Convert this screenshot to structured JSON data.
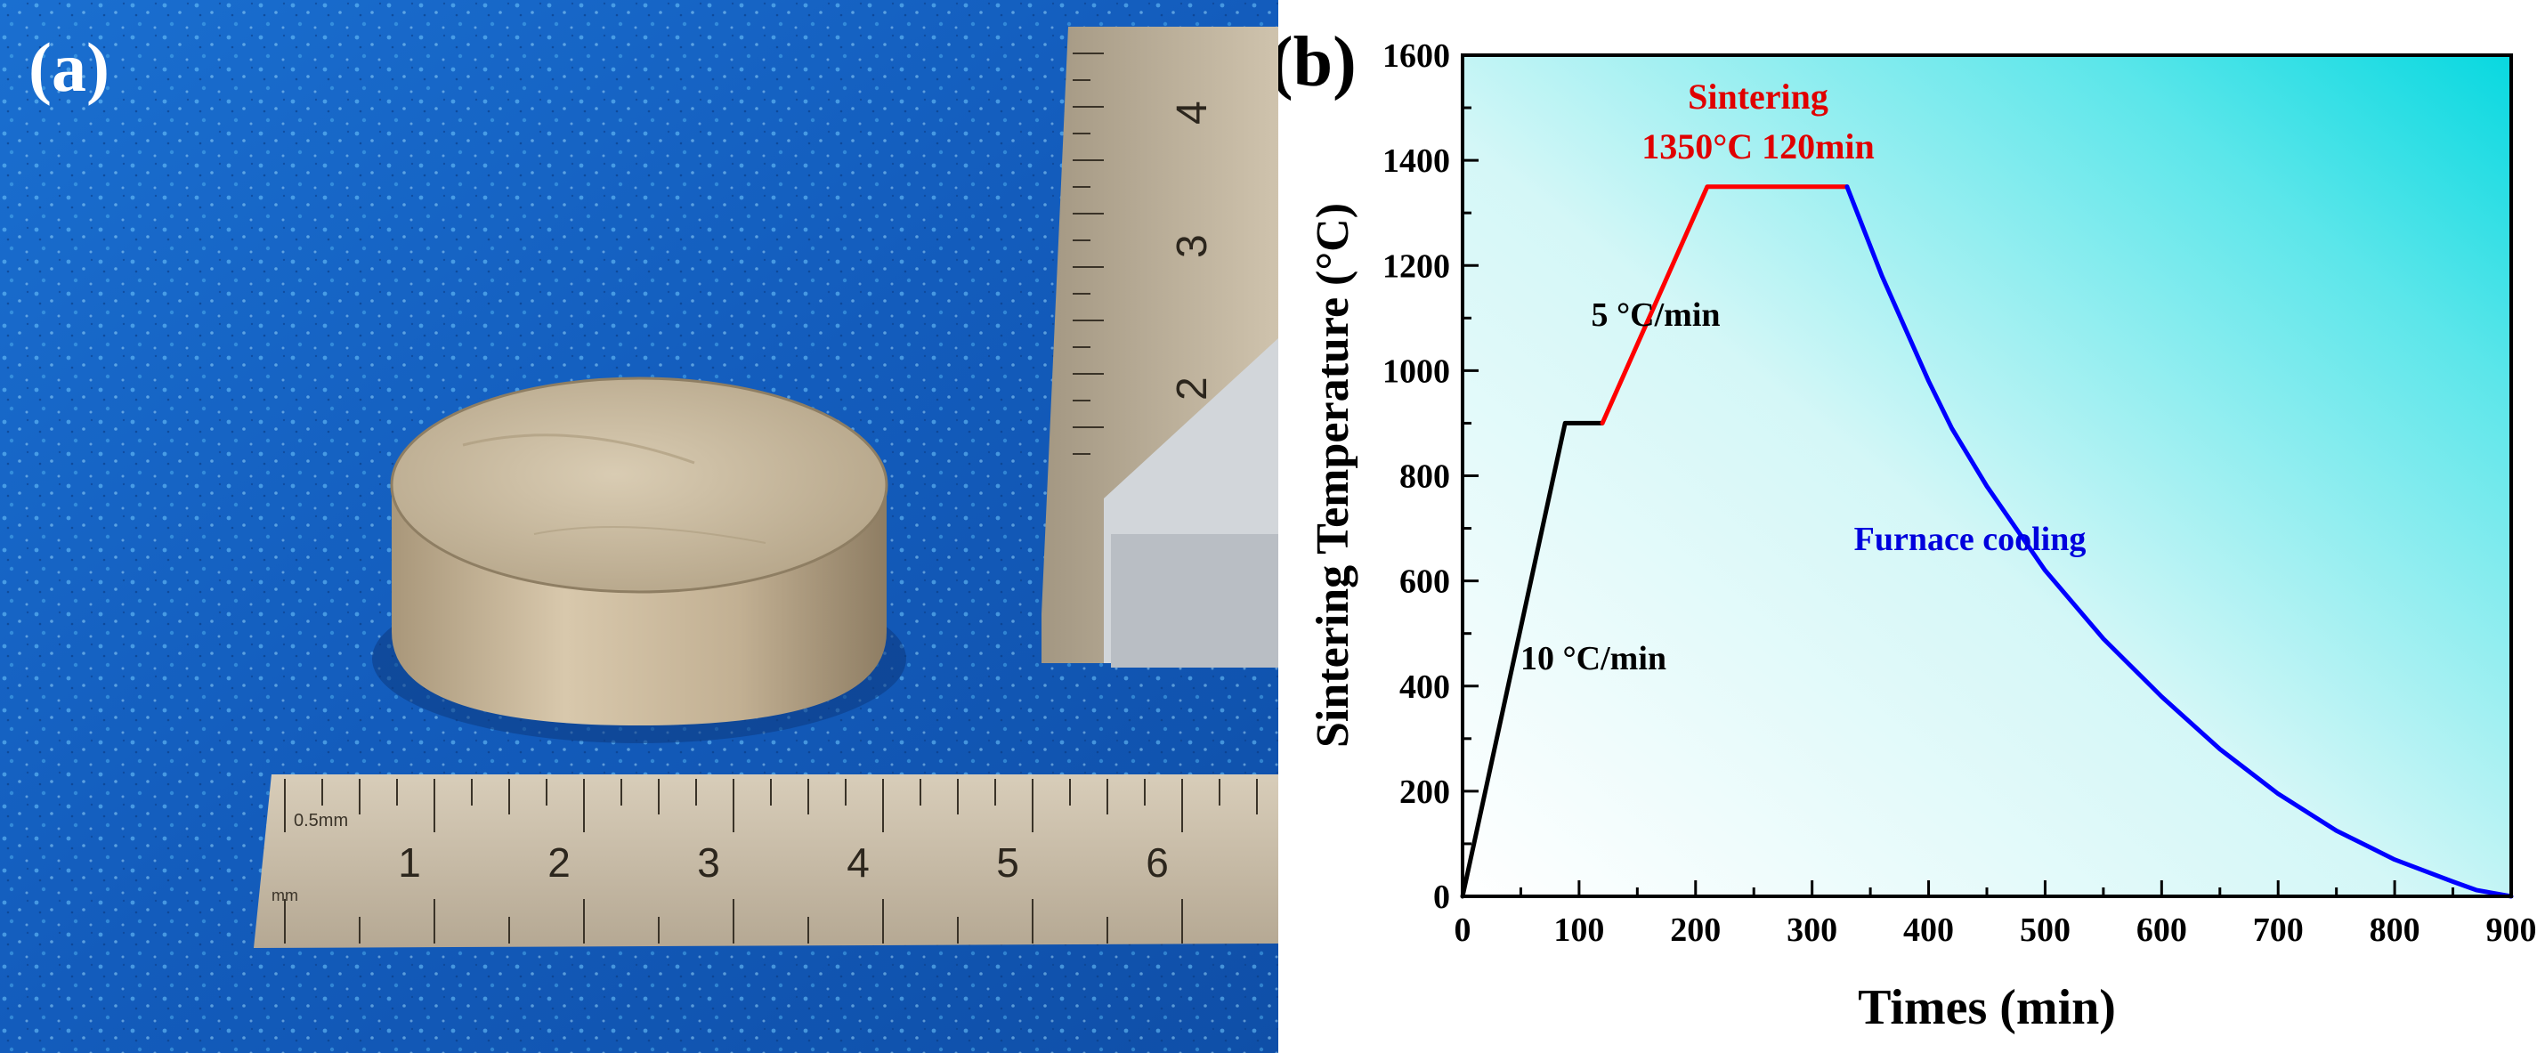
{
  "panel_a": {
    "label": "(a)",
    "ruler_bottom_numbers": [
      "1",
      "2",
      "3",
      "4",
      "5",
      "6"
    ],
    "ruler_bottom_unit": "0.5mm",
    "ruler_bottom_unit2": "mm",
    "ruler_right_numbers": [
      "2",
      "3",
      "4"
    ],
    "colors": {
      "background": "#1565c8",
      "sample": "#c9b89a",
      "ruler": "#c4b8a6"
    }
  },
  "panel_b": {
    "label": "(b)",
    "annotations": {
      "sintering_title": "Sintering",
      "sintering_params": "1350°C 120min",
      "rate_5": "5 °C/min",
      "rate_10": "10 °C/min",
      "furnace": "Furnace cooling"
    },
    "colors": {
      "heating": "#000000",
      "sintering": "#ff0000",
      "cooling": "#0000ff"
    }
  },
  "chart_data": {
    "type": "line",
    "title": "",
    "xlabel": "Times (min)",
    "ylabel": "Sintering Temperature (°C)",
    "xlim": [
      0,
      900
    ],
    "ylim": [
      0,
      1600
    ],
    "xticks": [
      0,
      100,
      200,
      300,
      400,
      500,
      600,
      700,
      800,
      900
    ],
    "yticks": [
      0,
      200,
      400,
      600,
      800,
      1000,
      1200,
      1400,
      1600
    ],
    "grid": false,
    "series": [
      {
        "color": "#000000",
        "x": [
          0,
          88,
          120
        ],
        "y": [
          0,
          900,
          900
        ]
      },
      {
        "color": "#ff0000",
        "x": [
          120,
          210,
          330
        ],
        "y": [
          900,
          1350,
          1350
        ]
      },
      {
        "color": "#0000ff",
        "x": [
          330,
          360,
          400,
          420,
          450,
          500,
          550,
          600,
          650,
          700,
          750,
          800,
          850,
          870,
          900
        ],
        "y": [
          1350,
          1180,
          980,
          890,
          780,
          620,
          490,
          380,
          280,
          195,
          125,
          70,
          28,
          12,
          0
        ]
      }
    ]
  }
}
